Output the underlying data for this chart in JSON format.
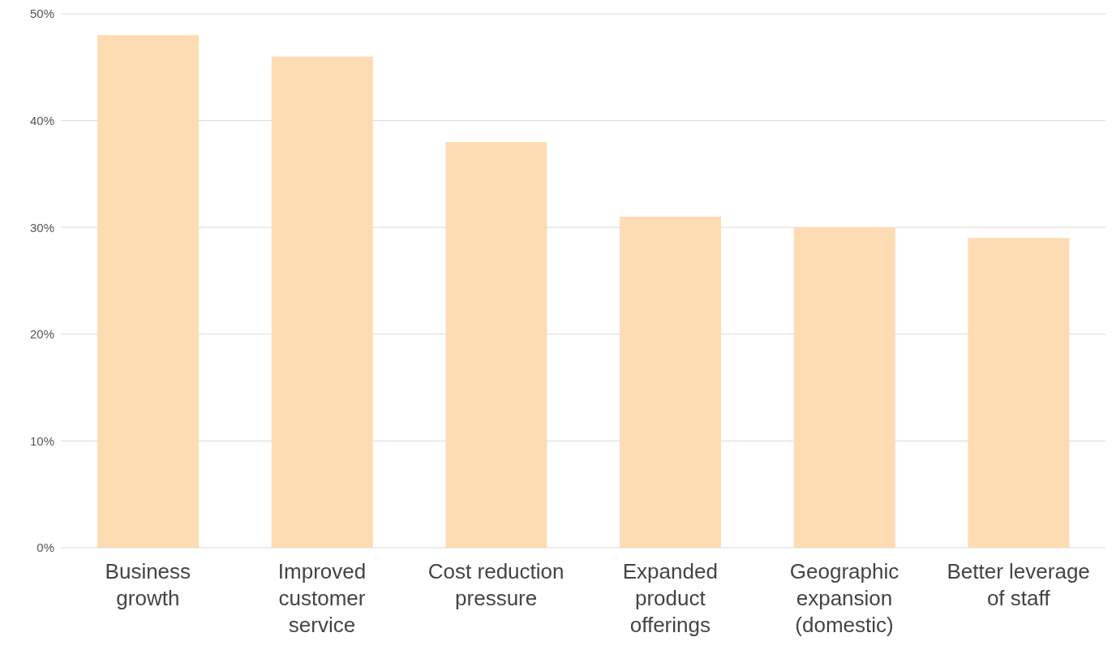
{
  "chart_data": {
    "type": "bar",
    "categories": [
      "Business growth",
      "Improved customer service",
      "Cost reduction pressure",
      "Expanded product offerings",
      "Geographic expansion (domestic)",
      "Better leverage of staff"
    ],
    "values": [
      48,
      46,
      38,
      31,
      30,
      29
    ],
    "color": "#fddbb3",
    "ylim": [
      0,
      50
    ],
    "yticks": [
      {
        "value": 0,
        "label": "0%"
      },
      {
        "value": 10,
        "label": "10%"
      },
      {
        "value": 20,
        "label": "20%"
      },
      {
        "value": 30,
        "label": "30%"
      },
      {
        "value": 40,
        "label": "40%"
      },
      {
        "value": 50,
        "label": "50%"
      }
    ],
    "grid": "y",
    "legend": false
  }
}
